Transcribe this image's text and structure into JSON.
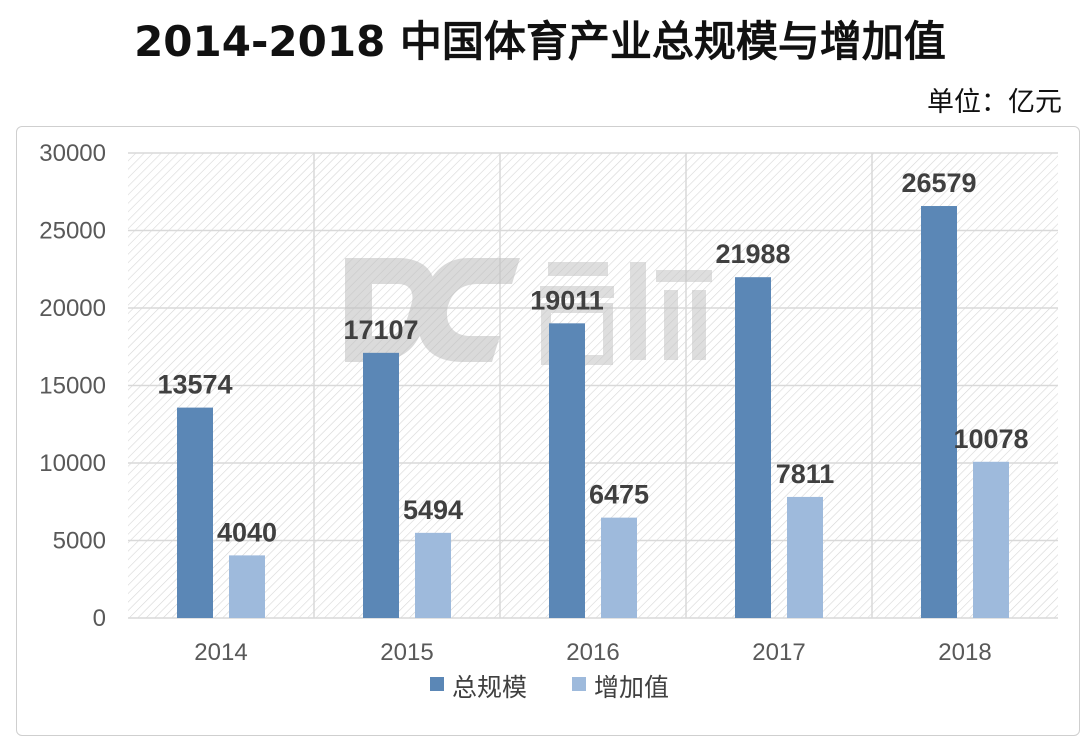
{
  "page": {
    "title": "2014-2018 中国体育产业总规模与增加值",
    "unit": "单位：亿元"
  },
  "colors": {
    "series_1": "#5b87b6",
    "series_2": "#9ebadc",
    "grid": "#d9d9d9",
    "hatch": "#d6d6d6",
    "watermark": "#bfbfbf"
  },
  "chart_data": {
    "type": "bar",
    "categories": [
      "2014",
      "2015",
      "2016",
      "2017",
      "2018"
    ],
    "series": [
      {
        "name": "总规模",
        "values": [
          13574,
          17107,
          19011,
          21988,
          26579
        ]
      },
      {
        "name": "增加值",
        "values": [
          4040,
          5494,
          6475,
          7811,
          10078
        ]
      }
    ],
    "ylim": [
      0,
      30000
    ],
    "yticks": [
      0,
      5000,
      10000,
      15000,
      20000,
      25000,
      30000
    ],
    "grid": true,
    "legend_position": "bottom",
    "data_labels": true
  }
}
